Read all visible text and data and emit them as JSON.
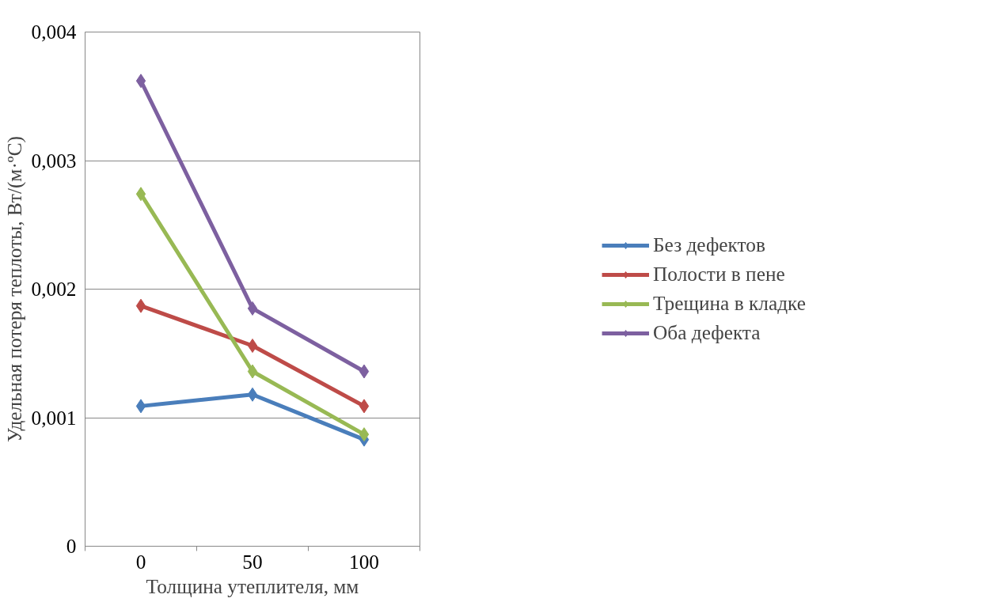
{
  "chart_data": {
    "type": "line",
    "xlabel": "Толщина утеплителя, мм",
    "ylabel": "Удельная потеря теплоты, Вт/(м·ºС)",
    "categories": [
      "0",
      "50",
      "100"
    ],
    "series": [
      {
        "name": "Без дефектов",
        "color": "#4a7ebb",
        "values": [
          0.00109,
          0.00118,
          0.00083
        ]
      },
      {
        "name": "Полости в пене",
        "color": "#be4b48",
        "values": [
          0.00187,
          0.00156,
          0.00109
        ]
      },
      {
        "name": "Трещина в кладке",
        "color": "#98b954",
        "values": [
          0.00274,
          0.00136,
          0.00087
        ]
      },
      {
        "name": "Оба дефекта",
        "color": "#7d60a0",
        "values": [
          0.00362,
          0.00185,
          0.00136
        ]
      }
    ],
    "ylim": [
      0,
      0.004
    ],
    "yticks": [
      0,
      {
        "value": 0.001,
        "label": "0,001"
      },
      {
        "value": 0.002,
        "label": "0,002"
      },
      {
        "value": 0.003,
        "label": "0,003"
      },
      {
        "value": 0.004,
        "label": "0,004"
      }
    ],
    "grid": "y",
    "legend": "right",
    "marker": "diamond",
    "line_style": "solid"
  }
}
